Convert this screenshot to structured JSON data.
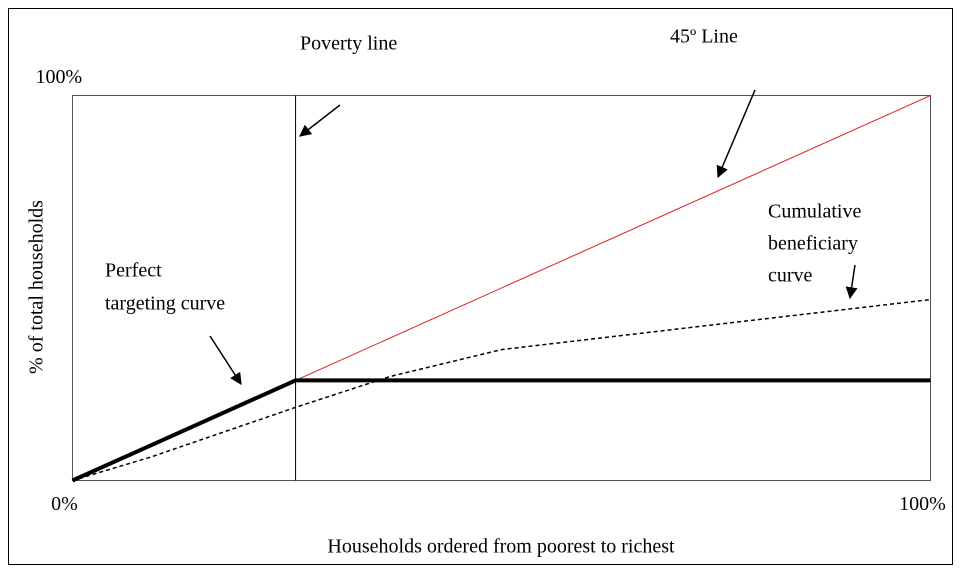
{
  "chart_data": {
    "type": "line",
    "x_label": "Households ordered from poorest to richest",
    "y_label": "% of total households",
    "xlim": [
      0,
      100
    ],
    "ylim": [
      0,
      100
    ],
    "xticks": [
      {
        "value": 0,
        "label": "0%"
      },
      {
        "value": 100,
        "label": "100%"
      }
    ],
    "yticks": [
      {
        "value": 100,
        "label": "100%"
      }
    ],
    "vline": {
      "x": 26,
      "label": "Poverty line"
    },
    "series": [
      {
        "label": [
          "45º Line"
        ],
        "color": "#e02020",
        "width": 1,
        "dashed": false,
        "x": [
          0,
          100
        ],
        "values": [
          0,
          100
        ]
      },
      {
        "label": [
          "Perfect",
          "targeting curve"
        ],
        "color": "#000000",
        "width": 4,
        "dashed": false,
        "x": [
          0,
          26,
          100
        ],
        "values": [
          0,
          26,
          26
        ]
      },
      {
        "label": [
          "Cumulative",
          "beneficiary",
          "curve"
        ],
        "color": "#000000",
        "width": 1.5,
        "dashed": true,
        "x": [
          0,
          9,
          26,
          37,
          50,
          73,
          100
        ],
        "values": [
          0,
          6,
          19,
          27,
          34,
          40,
          47
        ]
      }
    ]
  }
}
